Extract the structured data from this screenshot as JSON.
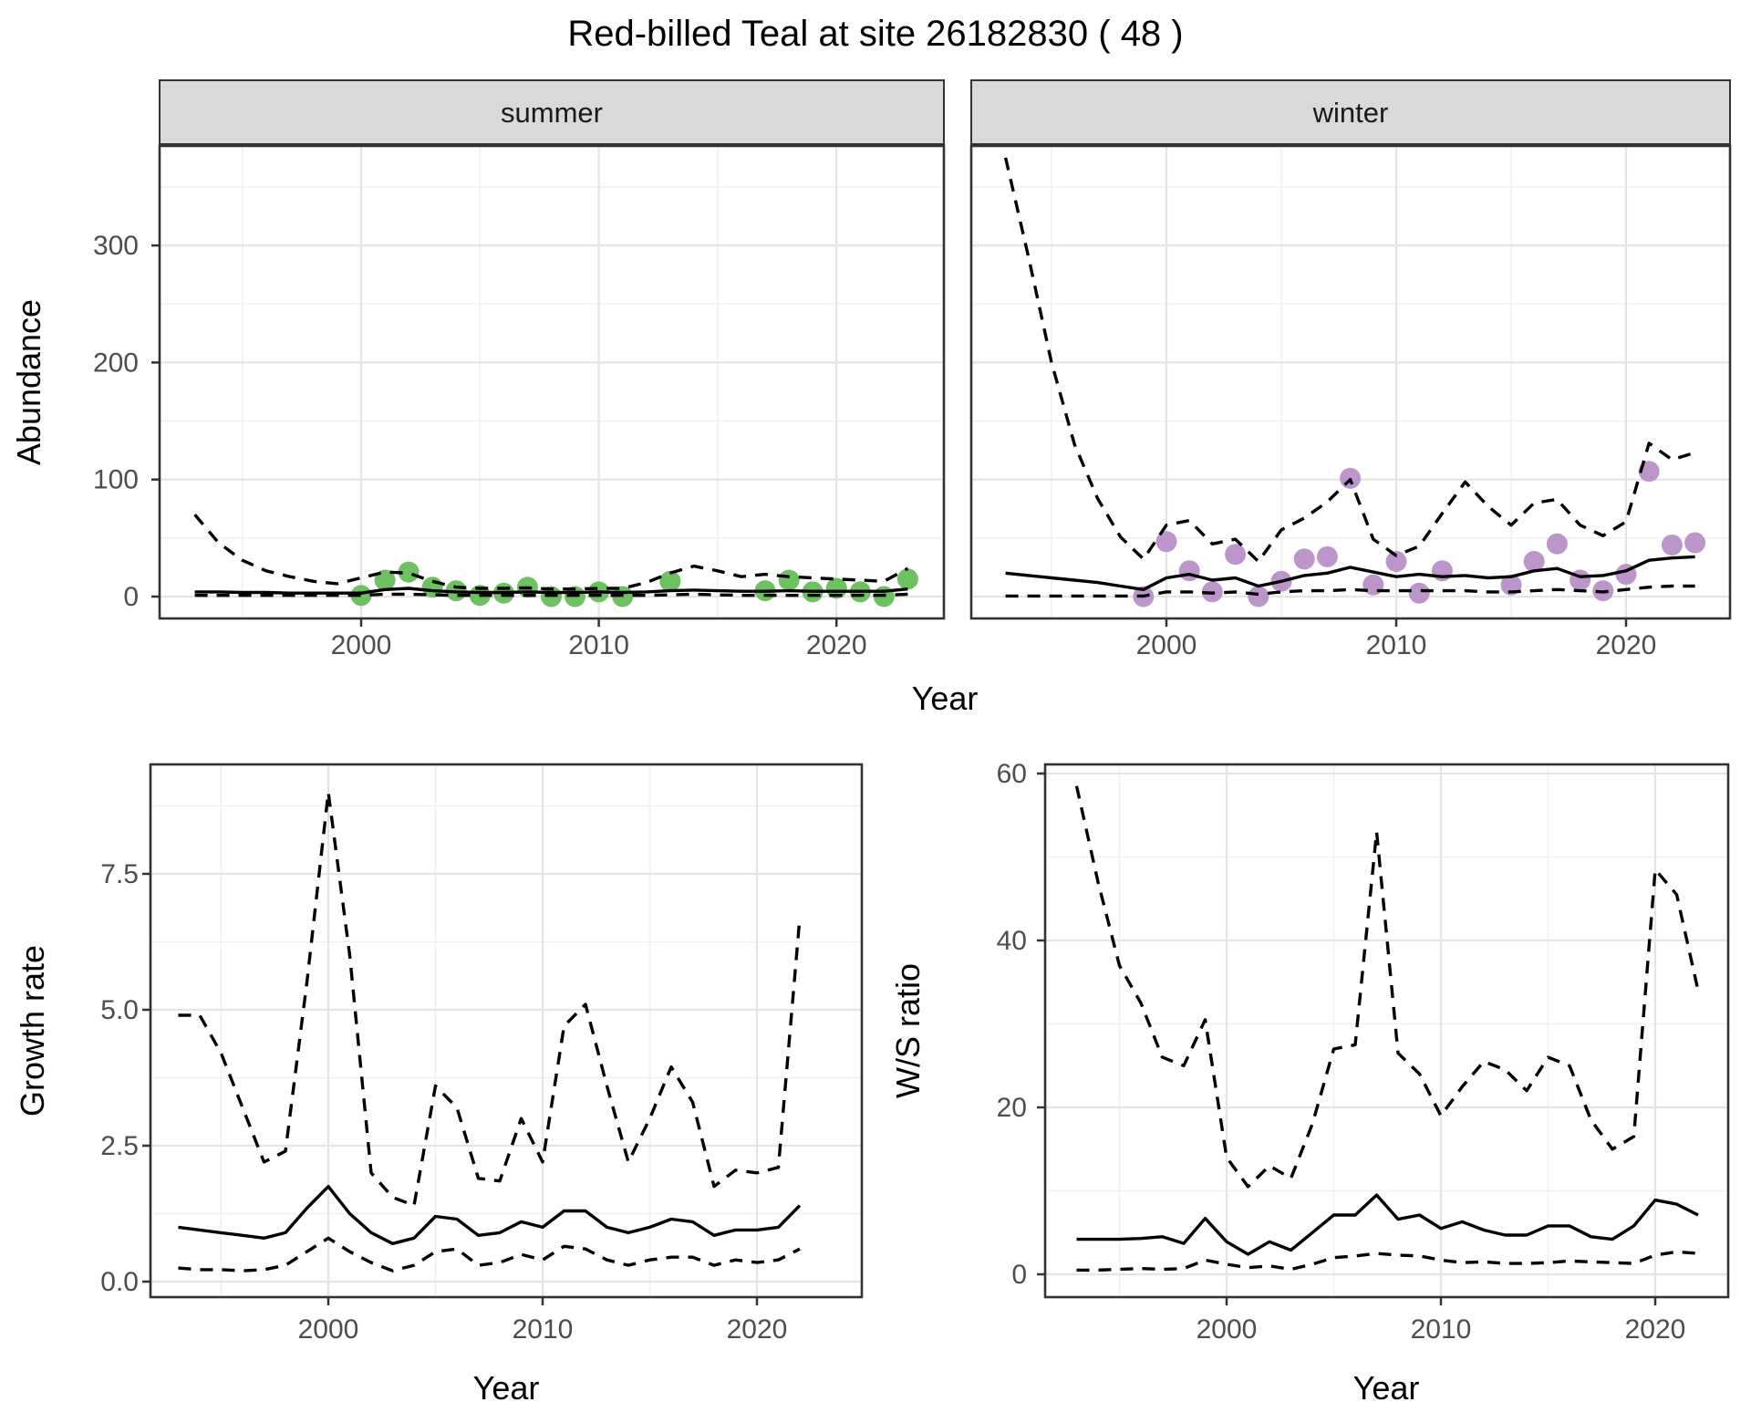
{
  "title": "Red-billed Teal at site 26182830 ( 48 )",
  "labels": {
    "year": "Year",
    "abundance": "Abundance",
    "growth_rate": "Growth rate",
    "ws_ratio": "W/S ratio"
  },
  "style": {
    "summer_point": "#6EC161",
    "winter_point": "#BC96CB",
    "line_color": "#000000",
    "strip_bg": "#D9D9D9",
    "panel_border": "#333333",
    "grid_major": "#E4E4E4",
    "grid_minor": "#F1F1F1",
    "tick_color": "#333333",
    "tick_label_color": "#4D4D4D"
  },
  "chart_data": [
    {
      "type": "line+scatter",
      "facet_label": "summer",
      "xlabel": "Year",
      "ylabel": "Abundance",
      "xlim": [
        1991.5,
        2024.5
      ],
      "ylim": [
        -18,
        385
      ],
      "xticks": {
        "values": [
          2000,
          2010,
          2020
        ],
        "labels": [
          "2000",
          "2010",
          "2020"
        ]
      },
      "xminor": [
        1995,
        2005,
        2015,
        2025
      ],
      "yticks": {
        "values": [
          0,
          100,
          200,
          300
        ],
        "labels": [
          "0",
          "100",
          "200",
          "300"
        ]
      },
      "yminor": [
        50,
        150,
        250,
        350
      ],
      "series": [
        {
          "name": "observed-counts",
          "style": "points",
          "color_key": "summer_point",
          "x": [
            2000,
            2001,
            2002,
            2003,
            2004,
            2005,
            2006,
            2007,
            2008,
            2009,
            2010,
            2011,
            2013,
            2017,
            2018,
            2019,
            2020,
            2021,
            2022,
            2023
          ],
          "y": [
            1,
            14,
            21,
            8,
            5,
            1,
            3,
            8,
            0,
            0,
            4,
            0,
            13,
            5,
            14,
            4,
            7,
            4,
            0,
            15
          ]
        },
        {
          "name": "median-estimate",
          "style": "solid",
          "x_start": 1993,
          "y": [
            4,
            4,
            3.5,
            3.5,
            3,
            3,
            3,
            3,
            6,
            7,
            5,
            4,
            3.5,
            3.5,
            4,
            3.5,
            3.5,
            4,
            3.5,
            4,
            5,
            5.5,
            5,
            4.5,
            4.5,
            5,
            4.5,
            4.5,
            4.5,
            4.5,
            6.5
          ]
        },
        {
          "name": "upper-credible-interval",
          "style": "dashed",
          "x_start": 1993,
          "y": [
            70,
            46,
            31,
            22,
            17,
            13,
            11,
            16,
            21,
            20,
            13,
            8,
            7,
            7,
            7.5,
            6.5,
            6.5,
            7,
            7,
            12,
            20,
            26,
            22,
            17,
            19,
            17,
            16,
            15,
            14,
            13,
            24
          ]
        },
        {
          "name": "lower-credible-interval",
          "style": "dashed",
          "x_start": 1993,
          "y": [
            1,
            1,
            1,
            1,
            1,
            1,
            1,
            1,
            2,
            2,
            1.5,
            1,
            1,
            1,
            1,
            1,
            1,
            1,
            1,
            1,
            1.5,
            2,
            1.5,
            1,
            1,
            1,
            1,
            1,
            1,
            1,
            2
          ]
        }
      ]
    },
    {
      "type": "line+scatter",
      "facet_label": "winter",
      "xlabel": "Year",
      "ylabel": "Abundance",
      "xlim": [
        1991.5,
        2024.5
      ],
      "ylim": [
        -18,
        385
      ],
      "xticks": {
        "values": [
          2000,
          2010,
          2020
        ],
        "labels": [
          "2000",
          "2010",
          "2020"
        ]
      },
      "xminor": [
        1995,
        2005,
        2015,
        2025
      ],
      "yticks": {
        "values": [
          0,
          100,
          200,
          300
        ],
        "labels": [
          "0",
          "100",
          "200",
          "300"
        ]
      },
      "yminor": [
        50,
        150,
        250,
        350
      ],
      "series": [
        {
          "name": "observed-counts",
          "style": "points",
          "color_key": "winter_point",
          "x": [
            1999,
            2000,
            2001,
            2002,
            2003,
            2004,
            2005,
            2006,
            2007,
            2008,
            2009,
            2010,
            2011,
            2012,
            2015,
            2016,
            2017,
            2018,
            2019,
            2020,
            2021,
            2022,
            2023
          ],
          "y": [
            0,
            47,
            22,
            4,
            36,
            0,
            13,
            32,
            34,
            101,
            10,
            30,
            3,
            22,
            10,
            30,
            45,
            14,
            5,
            19,
            107,
            44,
            46
          ]
        },
        {
          "name": "median-estimate",
          "style": "solid",
          "x_start": 1993,
          "y": [
            20,
            18,
            16,
            14,
            12,
            9,
            6,
            16,
            19,
            14,
            16,
            9,
            13,
            18,
            20,
            25,
            21,
            17,
            19,
            17,
            18,
            16,
            17,
            22,
            24,
            17,
            18,
            22,
            31,
            33,
            34
          ]
        },
        {
          "name": "upper-credible-interval",
          "style": "dashed",
          "x_start": 1993,
          "y": [
            375,
            290,
            200,
            130,
            84,
            51,
            32,
            61,
            65,
            45,
            49,
            30,
            57,
            67,
            81,
            100,
            49,
            35,
            43,
            71,
            98,
            77,
            61,
            80,
            83,
            61,
            52,
            64,
            131,
            117,
            123
          ]
        },
        {
          "name": "lower-credible-interval",
          "style": "dashed",
          "x_start": 1993,
          "y": [
            0.5,
            0.5,
            0.5,
            0.5,
            0.5,
            0.5,
            0.5,
            4,
            4,
            3,
            4,
            2,
            4,
            5,
            5,
            6,
            5,
            5,
            5,
            5,
            5,
            4,
            4,
            5,
            6,
            5,
            4,
            6,
            8,
            9,
            9
          ]
        }
      ]
    },
    {
      "type": "line",
      "facet_label": "",
      "xlabel": "Year",
      "ylabel": "Growth rate",
      "xlim": [
        1991.6,
        2024.4
      ],
      "ylim": [
        -0.35,
        9.5
      ],
      "xticks": {
        "values": [
          2000,
          2010,
          2020
        ],
        "labels": [
          "2000",
          "2010",
          "2020"
        ]
      },
      "xminor": [
        1995,
        2005,
        2015
      ],
      "yticks": {
        "values": [
          0,
          2.5,
          5,
          7.5
        ],
        "labels": [
          "0.0",
          "2.5",
          "5.0",
          "7.5"
        ]
      },
      "yminor": [
        1.25,
        3.75,
        6.25,
        8.75
      ],
      "series": [
        {
          "name": "median-growth-rate",
          "style": "solid",
          "x_start": 1993,
          "y": [
            1.0,
            0.95,
            0.9,
            0.85,
            0.8,
            0.9,
            1.35,
            1.75,
            1.25,
            0.9,
            0.7,
            0.8,
            1.2,
            1.15,
            0.85,
            0.9,
            1.1,
            1.0,
            1.3,
            1.3,
            1.0,
            0.9,
            1.0,
            1.15,
            1.1,
            0.85,
            0.95,
            0.95,
            1.0,
            1.4
          ]
        },
        {
          "name": "upper-credible-interval",
          "style": "dashed",
          "x_start": 1993,
          "y": [
            4.9,
            4.9,
            4.2,
            3.2,
            2.2,
            2.4,
            5.5,
            9.0,
            6.0,
            2.0,
            1.55,
            1.4,
            3.6,
            3.2,
            1.9,
            1.85,
            3.0,
            2.2,
            4.7,
            5.1,
            3.6,
            2.2,
            3.0,
            3.95,
            3.3,
            1.75,
            2.05,
            2.0,
            2.1,
            6.7
          ]
        },
        {
          "name": "lower-credible-interval",
          "style": "dashed",
          "x_start": 1993,
          "y": [
            0.25,
            0.22,
            0.22,
            0.2,
            0.22,
            0.3,
            0.55,
            0.8,
            0.55,
            0.35,
            0.2,
            0.3,
            0.55,
            0.6,
            0.3,
            0.35,
            0.5,
            0.4,
            0.65,
            0.6,
            0.4,
            0.3,
            0.4,
            0.45,
            0.45,
            0.3,
            0.4,
            0.35,
            0.4,
            0.6
          ]
        }
      ]
    },
    {
      "type": "line",
      "facet_label": "",
      "xlabel": "Year",
      "ylabel": "W/S ratio",
      "xlim": [
        1991.6,
        2024.4
      ],
      "ylim": [
        -2.4,
        61.4
      ],
      "xticks": {
        "values": [
          2000,
          2010,
          2020
        ],
        "labels": [
          "2000",
          "2010",
          "2020"
        ]
      },
      "xminor": [
        1995,
        2005,
        2015
      ],
      "yticks": {
        "values": [
          0,
          20,
          40,
          60
        ],
        "labels": [
          "0",
          "20",
          "40",
          "60"
        ]
      },
      "yminor": [
        10,
        30,
        50
      ],
      "series": [
        {
          "name": "median-ws-ratio",
          "style": "solid",
          "x_start": 1993,
          "y": [
            4.2,
            4.2,
            4.2,
            4.3,
            4.5,
            3.7,
            6.7,
            3.9,
            2.4,
            3.9,
            2.9,
            5.0,
            7.1,
            7.1,
            9.5,
            6.6,
            7.1,
            5.5,
            6.3,
            5.3,
            4.7,
            4.7,
            5.8,
            5.8,
            4.5,
            4.2,
            5.8,
            8.9,
            8.4,
            7.1
          ]
        },
        {
          "name": "upper-credible-interval",
          "style": "dashed",
          "x_start": 1993,
          "y": [
            58.5,
            47,
            37,
            32.5,
            26,
            25,
            30.5,
            14,
            10.5,
            13,
            11.5,
            18,
            27,
            27.5,
            53,
            26.5,
            24,
            19,
            22.5,
            25.5,
            24.5,
            22,
            26,
            25,
            18.5,
            15,
            16.5,
            48.5,
            45.5,
            34
          ]
        },
        {
          "name": "lower-credible-interval",
          "style": "dashed",
          "x_start": 1993,
          "y": [
            0.5,
            0.5,
            0.6,
            0.7,
            0.6,
            0.7,
            1.7,
            1.2,
            0.8,
            1.0,
            0.6,
            1.2,
            2.0,
            2.2,
            2.5,
            2.3,
            2.2,
            1.7,
            1.4,
            1.5,
            1.3,
            1.3,
            1.4,
            1.6,
            1.5,
            1.4,
            1.3,
            2.3,
            2.7,
            2.5
          ]
        }
      ]
    }
  ]
}
